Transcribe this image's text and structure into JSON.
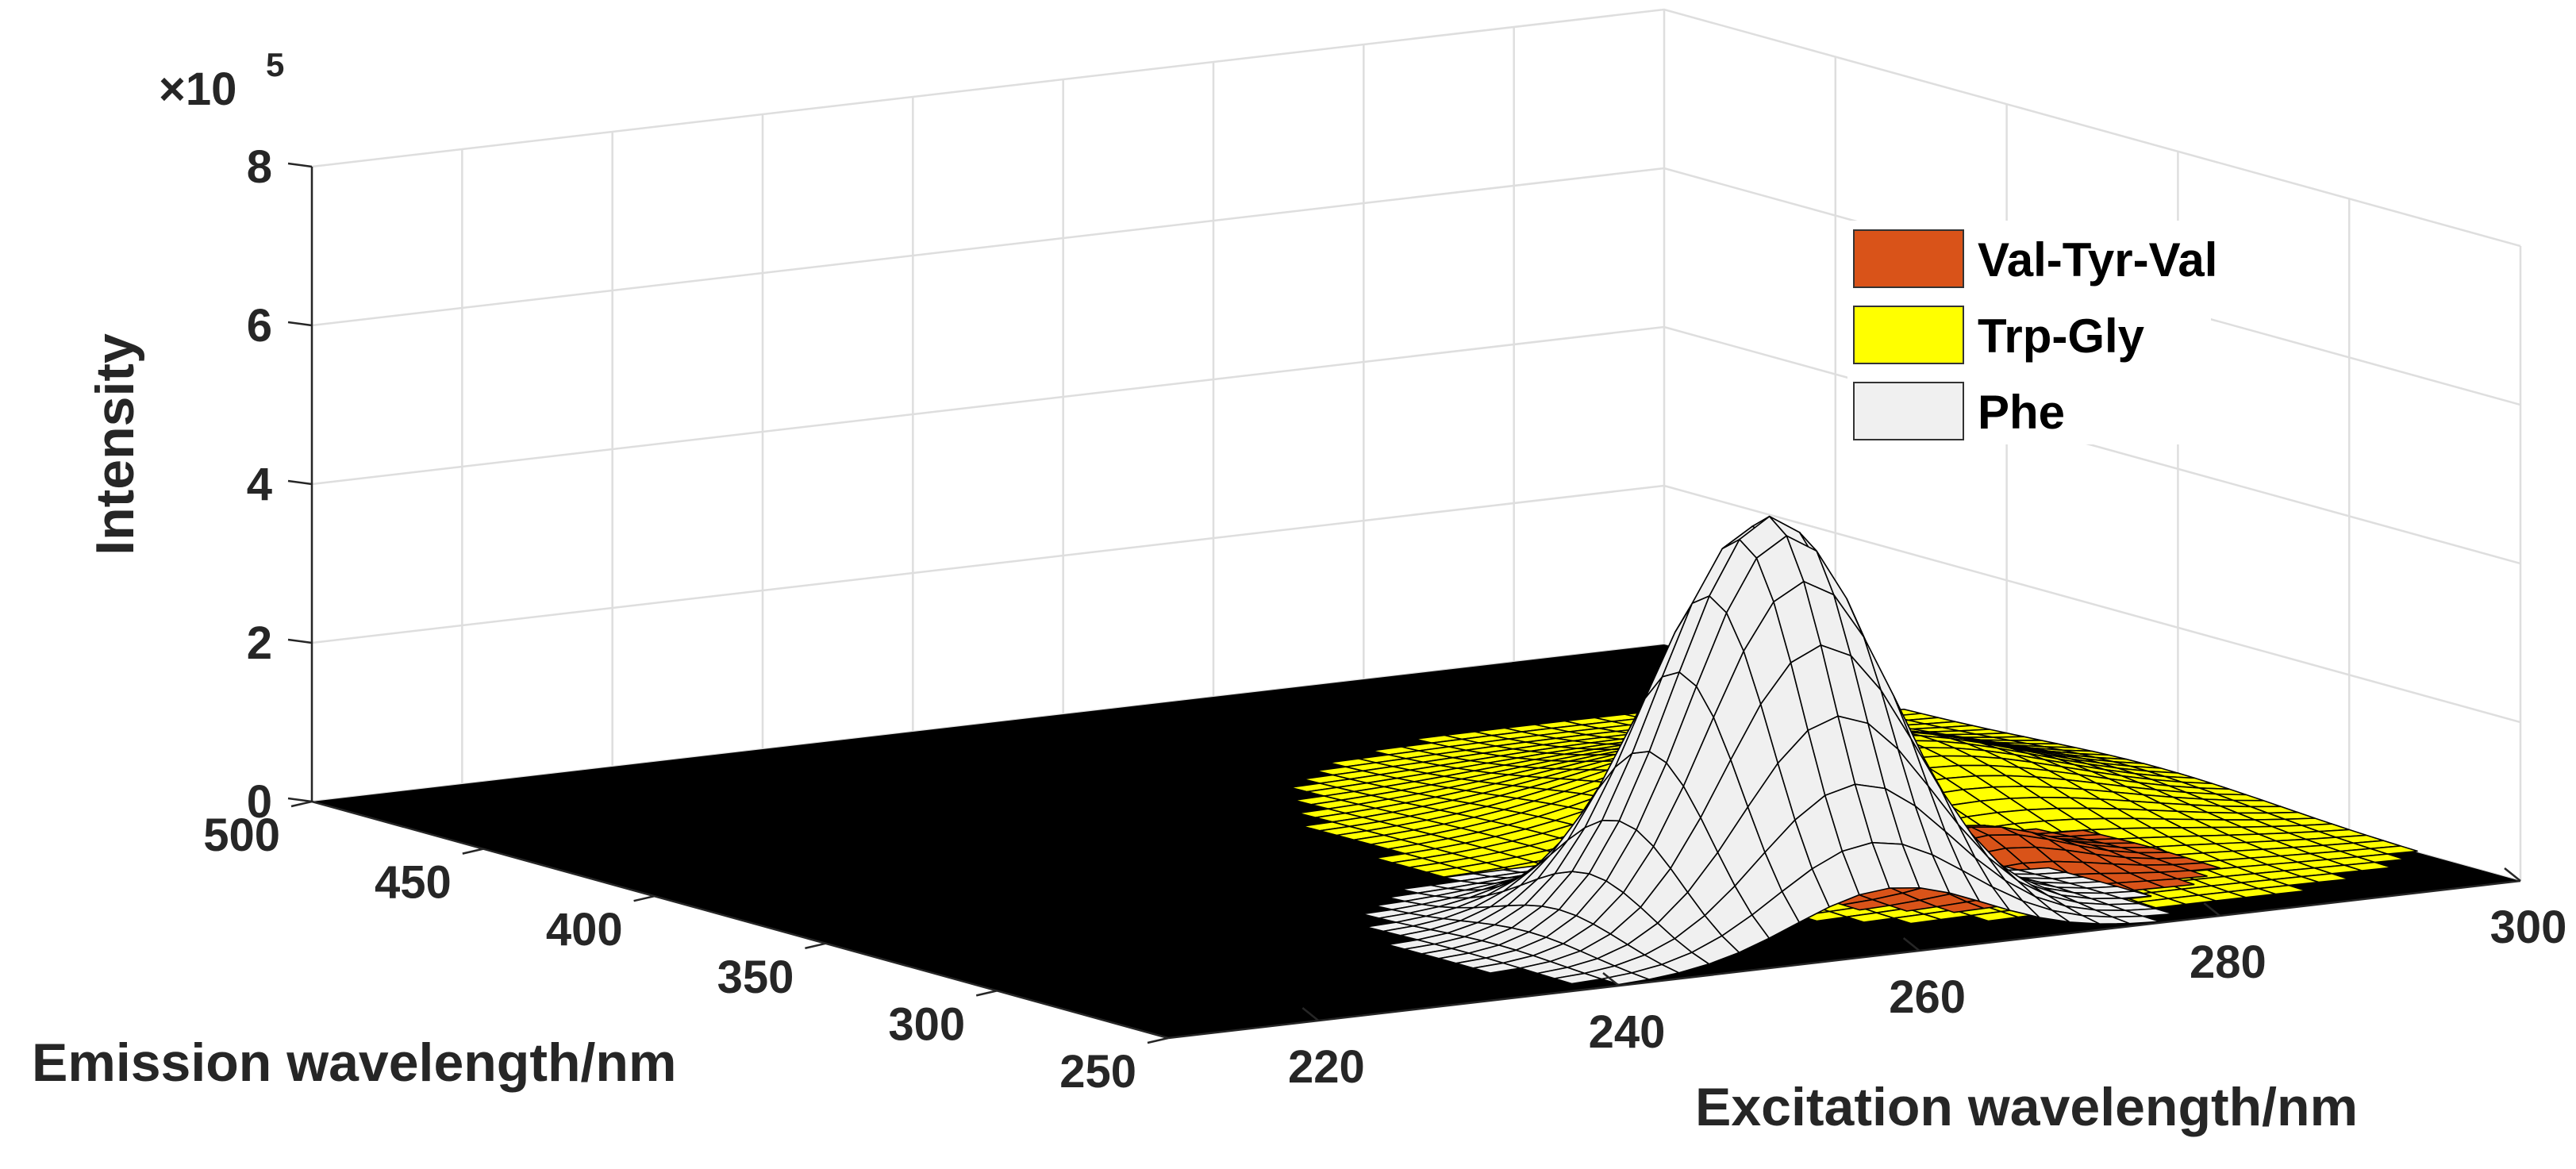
{
  "chart_data": {
    "type": "surface",
    "x_axis": {
      "label": "Excitation wavelength/nm",
      "ticks": [
        220,
        240,
        260,
        280,
        300
      ],
      "range": [
        210,
        300
      ]
    },
    "y_axis": {
      "label": "Emission wavelength/nm",
      "ticks": [
        250,
        300,
        350,
        400,
        450,
        500
      ],
      "range": [
        250,
        500
      ]
    },
    "z_axis": {
      "label": "Intensity",
      "ticks": [
        0,
        2,
        4,
        6,
        8
      ],
      "range": [
        0,
        8
      ],
      "multiplier": "×10",
      "exponent": "5"
    },
    "grid": true,
    "legend": {
      "position": "top-right",
      "entries": [
        {
          "name": "Val-Tyr-Val",
          "color": "#d95319"
        },
        {
          "name": "Trp-Gly",
          "color": "#ffff00"
        },
        {
          "name": "Phe",
          "color": "#f0f0f0"
        }
      ]
    },
    "series": [
      {
        "name": "Phe",
        "color": "#f0f0f0",
        "peak": {
          "excitation": 258,
          "emission": 285,
          "intensity": 5.1
        }
      },
      {
        "name": "Trp-Gly",
        "color": "#ffff00",
        "peak": {
          "excitation": 280,
          "emission": 355,
          "intensity": 1.0
        }
      },
      {
        "name": "Val-Tyr-Val",
        "color": "#d95319",
        "peak": {
          "excitation": 276,
          "emission": 305,
          "intensity": 0.55
        }
      }
    ]
  }
}
